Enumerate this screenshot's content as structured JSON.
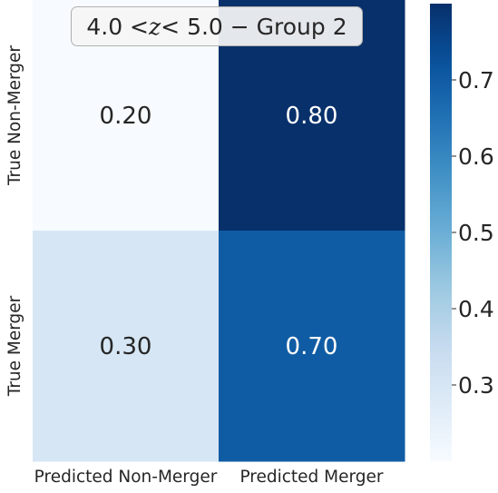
{
  "chart_data": {
    "type": "heatmap",
    "title": {
      "prefix": "4.0 < ",
      "var": "z",
      "suffix": " < 5.0 − Group 2"
    },
    "x_categories": [
      "Predicted Non-Merger",
      "Predicted Merger"
    ],
    "y_categories": [
      "True Non-Merger",
      "True Merger"
    ],
    "values": [
      [
        0.2,
        0.8
      ],
      [
        0.3,
        0.7
      ]
    ],
    "value_labels": [
      [
        "0.20",
        "0.80"
      ],
      [
        "0.30",
        "0.70"
      ]
    ],
    "colormap": "Blues",
    "colorbar": {
      "range": [
        0.2,
        0.8
      ],
      "ticks": [
        0.3,
        0.4,
        0.5,
        0.6,
        0.7
      ],
      "tick_labels": [
        "0.3",
        "0.4",
        "0.5",
        "0.6",
        "0.7"
      ]
    },
    "colors": {
      "low": "#f7fbff",
      "high": "#08306b",
      "text_light": "#ffffff",
      "text_dark": "#262626"
    }
  }
}
